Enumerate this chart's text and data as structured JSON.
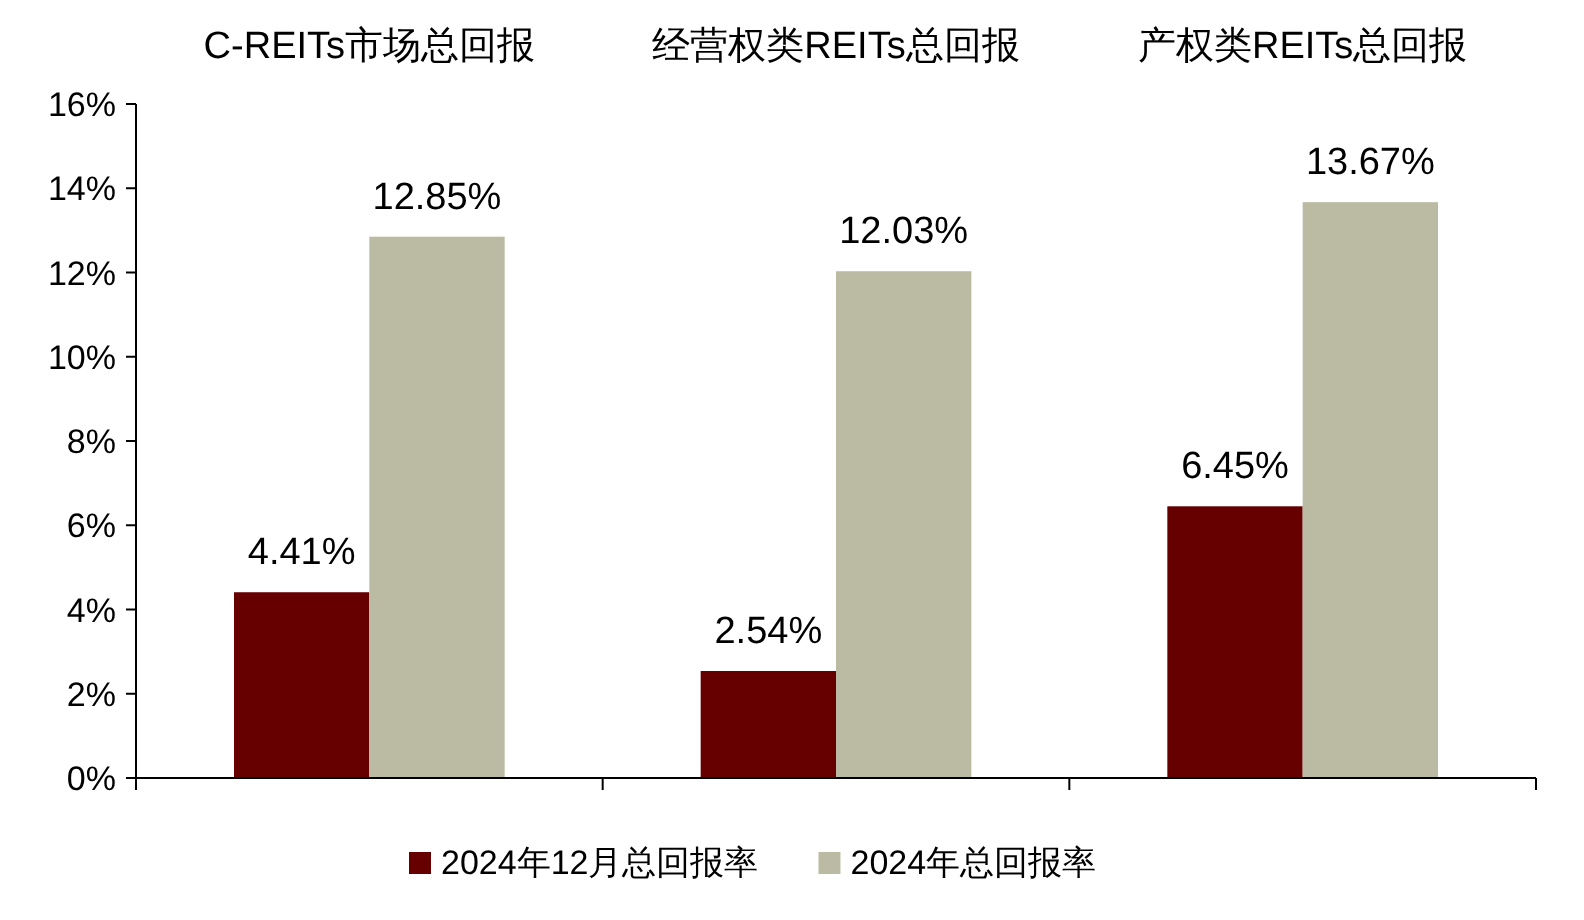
{
  "chart_data": {
    "type": "bar",
    "categories": [
      "C-REITs市场总回报",
      "经营权类REITs总回报",
      "产权类REITs总回报"
    ],
    "series": [
      {
        "name": "2024年12月总回报率",
        "color": "#660000",
        "values": [
          4.41,
          2.54,
          6.45
        ],
        "value_labels": [
          "4.41%",
          "2.54%",
          "6.45%"
        ]
      },
      {
        "name": "2024年总回报率",
        "color": "#bbbba3",
        "values": [
          12.85,
          12.03,
          13.67
        ],
        "value_labels": [
          "12.85%",
          "12.03%",
          "13.67%"
        ]
      }
    ],
    "ylim": [
      0,
      16
    ],
    "yticks": [
      {
        "value": 0,
        "label": "0%"
      },
      {
        "value": 2,
        "label": "2%"
      },
      {
        "value": 4,
        "label": "4%"
      },
      {
        "value": 6,
        "label": "6%"
      },
      {
        "value": 8,
        "label": "8%"
      },
      {
        "value": 10,
        "label": "10%"
      },
      {
        "value": 12,
        "label": "12%"
      },
      {
        "value": 14,
        "label": "14%"
      },
      {
        "value": 16,
        "label": "16%"
      }
    ],
    "grid": false,
    "legend": "bottom"
  }
}
